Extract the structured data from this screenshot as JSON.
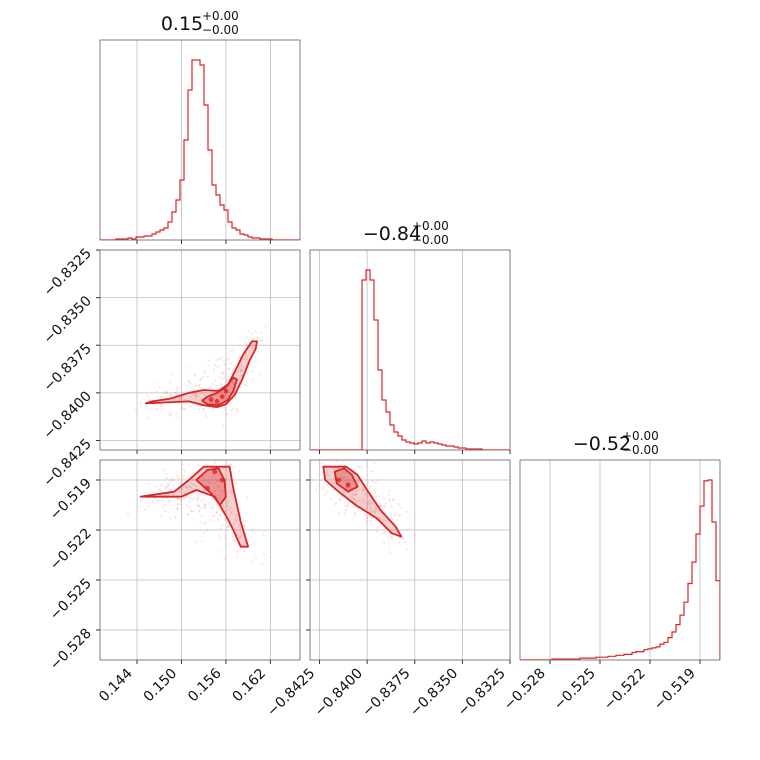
{
  "chart_data": {
    "type": "corner",
    "color": "#d62728",
    "grid": true,
    "variables": [
      {
        "title_main": "0.15",
        "title_plus": "+0.00",
        "title_minus": "−0.00",
        "range": [
          0.139,
          0.166
        ],
        "ticks": [
          0.144,
          0.15,
          0.156,
          0.162
        ],
        "tick_labels": [
          "0.144",
          "0.150",
          "0.156",
          "0.162"
        ]
      },
      {
        "title_main": "−0.84",
        "title_plus": "+0.00",
        "title_minus": "−0.00",
        "range": [
          -0.843,
          -0.8325
        ],
        "ticks": [
          -0.8425,
          -0.84,
          -0.8375,
          -0.835,
          -0.8325
        ],
        "tick_labels": [
          "−0.8425",
          "−0.8400",
          "−0.8375",
          "−0.8350",
          "−0.8325"
        ]
      },
      {
        "title_main": "−0.52",
        "title_plus": "+0.00",
        "title_minus": "−0.00",
        "range": [
          -0.5298,
          -0.5178
        ],
        "ticks": [
          -0.528,
          -0.525,
          -0.522,
          -0.519
        ],
        "tick_labels": [
          "−0.528",
          "−0.525",
          "−0.522",
          "−0.519"
        ]
      }
    ],
    "histograms": [
      {
        "variable": 0,
        "bin_start": 0.139,
        "bin_width": 0.00054,
        "counts": [
          0,
          0,
          0,
          0,
          1,
          1,
          1,
          2,
          1,
          3,
          3,
          4,
          4,
          6,
          8,
          10,
          12,
          18,
          28,
          40,
          60,
          100,
          150,
          180,
          180,
          175,
          135,
          90,
          55,
          45,
          35,
          30,
          18,
          12,
          10,
          6,
          5,
          3,
          2,
          2,
          1,
          1,
          1,
          0,
          0,
          0,
          0,
          0,
          0,
          0
        ]
      },
      {
        "variable": 1,
        "bin_start": -0.843,
        "bin_width": 0.00021,
        "counts": [
          0,
          0,
          0,
          0,
          0,
          0,
          0,
          0,
          0,
          0,
          0,
          0,
          0,
          170,
          180,
          170,
          130,
          80,
          50,
          38,
          25,
          18,
          14,
          10,
          8,
          7,
          6,
          7,
          9,
          7,
          8,
          7,
          6,
          5,
          4,
          4,
          3,
          2,
          2,
          1,
          1,
          1,
          1,
          0,
          0,
          0,
          0,
          0,
          0,
          0
        ]
      },
      {
        "variable": 2,
        "bin_start": -0.5298,
        "bin_width": 0.00024,
        "counts": [
          0,
          0,
          0,
          0,
          0,
          0,
          0,
          0,
          1,
          1,
          1,
          1,
          1,
          1,
          1,
          2,
          2,
          2,
          2,
          3,
          3,
          3,
          4,
          4,
          5,
          5,
          6,
          6,
          8,
          9,
          9,
          11,
          12,
          13,
          14,
          17,
          19,
          24,
          30,
          38,
          48,
          62,
          82,
          105,
          135,
          165,
          192,
          193,
          148,
          85
        ]
      }
    ],
    "scatter_pairs": [
      {
        "x_variable": 0,
        "y_variable": 1,
        "core_points": [
          [
            0.1548,
            -0.84045
          ],
          [
            0.154,
            -0.84035
          ],
          [
            0.1555,
            -0.8402
          ],
          [
            0.156,
            -0.8399
          ]
        ],
        "contour_outer": [
          [
            0.1452,
            -0.84055
          ],
          [
            0.148,
            -0.8405
          ],
          [
            0.151,
            -0.84045
          ],
          [
            0.153,
            -0.84065
          ],
          [
            0.1548,
            -0.84075
          ],
          [
            0.156,
            -0.8406
          ],
          [
            0.1572,
            -0.8401
          ],
          [
            0.1582,
            -0.8393
          ],
          [
            0.1592,
            -0.8383
          ],
          [
            0.16,
            -0.8377
          ],
          [
            0.1602,
            -0.8373
          ],
          [
            0.1595,
            -0.8373
          ],
          [
            0.1583,
            -0.838
          ],
          [
            0.1573,
            -0.8388
          ],
          [
            0.1563,
            -0.83955
          ],
          [
            0.155,
            -0.8399
          ],
          [
            0.153,
            -0.83985
          ],
          [
            0.151,
            -0.84
          ],
          [
            0.1485,
            -0.8403
          ],
          [
            0.146,
            -0.84045
          ]
        ],
        "contour_inner": [
          [
            0.1535,
            -0.8406
          ],
          [
            0.155,
            -0.84065
          ],
          [
            0.1562,
            -0.8404
          ],
          [
            0.157,
            -0.8399
          ],
          [
            0.1575,
            -0.8393
          ],
          [
            0.157,
            -0.8392
          ],
          [
            0.156,
            -0.8397
          ],
          [
            0.1548,
            -0.84
          ],
          [
            0.1535,
            -0.8402
          ],
          [
            0.1528,
            -0.8404
          ]
        ]
      },
      {
        "x_variable": 0,
        "y_variable": 2,
        "core_points": [
          [
            0.1545,
            -0.5185
          ],
          [
            0.1555,
            -0.519
          ],
          [
            0.1535,
            -0.5195
          ]
        ],
        "contour_outer": [
          [
            0.1445,
            -0.52
          ],
          [
            0.148,
            -0.52
          ],
          [
            0.15,
            -0.52
          ],
          [
            0.152,
            -0.5196
          ],
          [
            0.1545,
            -0.52
          ],
          [
            0.1562,
            -0.5213
          ],
          [
            0.157,
            -0.522
          ],
          [
            0.158,
            -0.523
          ],
          [
            0.159,
            -0.523
          ],
          [
            0.158,
            -0.5215
          ],
          [
            0.157,
            -0.5195
          ],
          [
            0.1565,
            -0.5182
          ],
          [
            0.153,
            -0.5182
          ],
          [
            0.151,
            -0.519
          ],
          [
            0.149,
            -0.5197
          ],
          [
            0.146,
            -0.5199
          ]
        ],
        "contour_inner": [
          [
            0.152,
            -0.519
          ],
          [
            0.154,
            -0.5198
          ],
          [
            0.1552,
            -0.5205
          ],
          [
            0.156,
            -0.52
          ],
          [
            0.1558,
            -0.519
          ],
          [
            0.155,
            -0.5183
          ],
          [
            0.1535,
            -0.5184
          ]
        ]
      },
      {
        "x_variable": 1,
        "y_variable": 2,
        "core_points": [
          [
            -0.8415,
            -0.519
          ],
          [
            -0.841,
            -0.5193
          ]
        ],
        "contour_outer": [
          [
            -0.8423,
            -0.5182
          ],
          [
            -0.8422,
            -0.519
          ],
          [
            -0.8415,
            -0.5197
          ],
          [
            -0.8406,
            -0.5205
          ],
          [
            -0.8395,
            -0.5213
          ],
          [
            -0.8387,
            -0.5222
          ],
          [
            -0.8382,
            -0.5224
          ],
          [
            -0.8385,
            -0.5218
          ],
          [
            -0.8393,
            -0.5208
          ],
          [
            -0.84,
            -0.5196
          ],
          [
            -0.8405,
            -0.5187
          ],
          [
            -0.8411,
            -0.5182
          ]
        ],
        "contour_inner": [
          [
            -0.8417,
            -0.5185
          ],
          [
            -0.8416,
            -0.5192
          ],
          [
            -0.841,
            -0.5197
          ],
          [
            -0.8405,
            -0.5194
          ],
          [
            -0.8408,
            -0.5187
          ],
          [
            -0.8412,
            -0.5183
          ]
        ]
      }
    ]
  }
}
